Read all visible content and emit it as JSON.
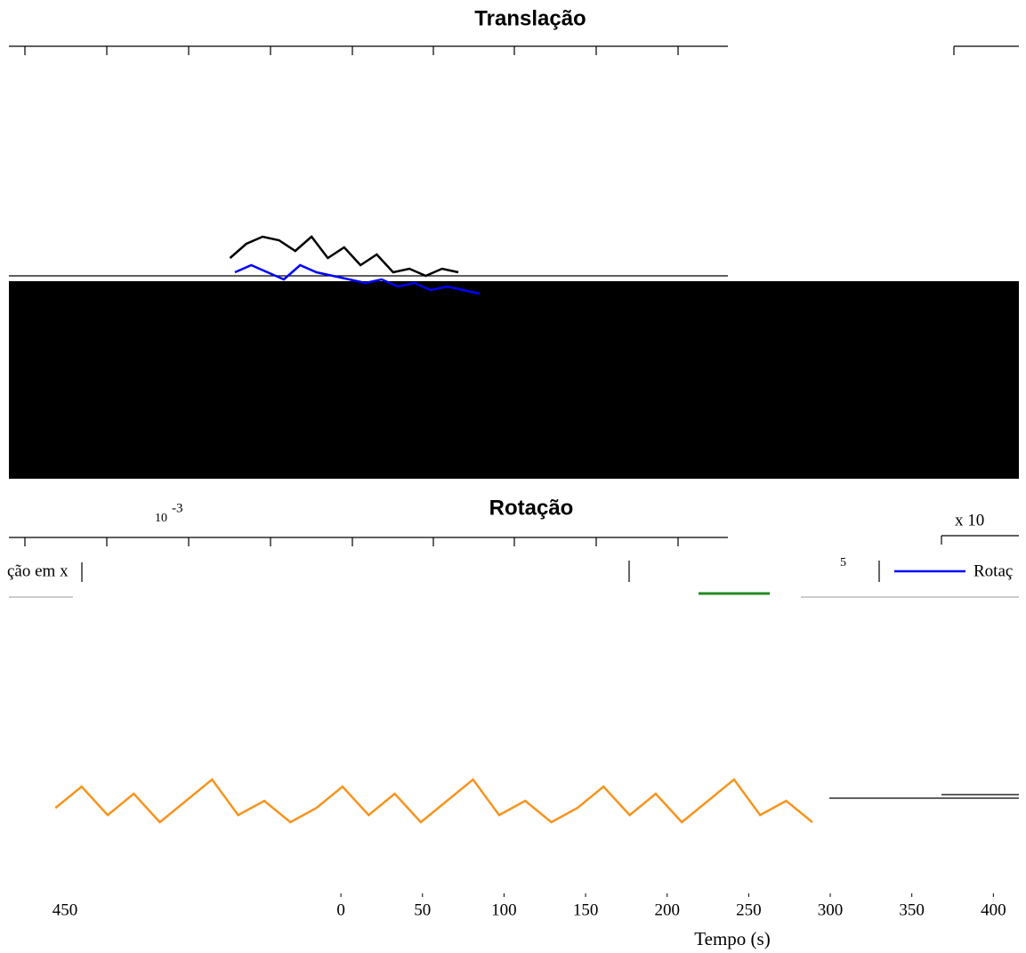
{
  "chart_data": [
    {
      "type": "line",
      "title": "Translação",
      "xlim": [
        -209,
        420
      ],
      "ylim": [
        0,
        10
      ],
      "series": [
        {
          "color": "#000000",
          "x": [
            -68,
            -58,
            -48,
            -38,
            -28,
            -18,
            -8,
            2,
            12,
            22,
            32,
            42,
            52,
            62,
            72
          ],
          "values": [
            5,
            7,
            8,
            7.5,
            6,
            8,
            5,
            6.5,
            4,
            5.5,
            3,
            3.5,
            2.5,
            3.5,
            3
          ]
        },
        {
          "color": "#0000ff",
          "x": [
            -65,
            -55,
            -45,
            -35,
            -25,
            -15,
            -5,
            5,
            15,
            25,
            35,
            45,
            55,
            65,
            75,
            85
          ],
          "values": [
            3,
            4,
            3,
            2,
            4,
            3,
            2.5,
            2,
            1.5,
            2,
            1,
            1.5,
            0.5,
            1,
            0.5,
            0
          ]
        }
      ]
    },
    {
      "type": "line",
      "title": "Rotação",
      "xlabel": "Tempo (s)",
      "xlim": [
        -209,
        420
      ],
      "ylim": [
        0,
        10
      ],
      "xticks": [
        0,
        50,
        100,
        150,
        200,
        250,
        300,
        350,
        400
      ],
      "stray_label": "450",
      "ylabel_fragment": "ção em x",
      "exponent_base": "10",
      "exponent": "-3",
      "scale_label": "x 10",
      "scale_digit": "5",
      "series": [
        {
          "name": "Rotaç",
          "color": "#0000ff",
          "x": [],
          "values": []
        },
        {
          "color": "#f7941d",
          "x": [
            -175,
            -159,
            -143,
            -127,
            -111,
            -95,
            -79,
            -63,
            -47,
            -31,
            -15,
            1,
            17,
            33,
            49,
            65,
            81,
            97,
            113,
            129,
            145,
            161,
            177,
            193,
            209,
            225,
            241,
            257,
            273,
            289
          ],
          "values": [
            4,
            7,
            3,
            6,
            2,
            5,
            8,
            3,
            5,
            2,
            4,
            7,
            3,
            6,
            2,
            5,
            8,
            3,
            5,
            2,
            4,
            7,
            3,
            6,
            2,
            5,
            8,
            3,
            5,
            2
          ]
        }
      ]
    }
  ]
}
